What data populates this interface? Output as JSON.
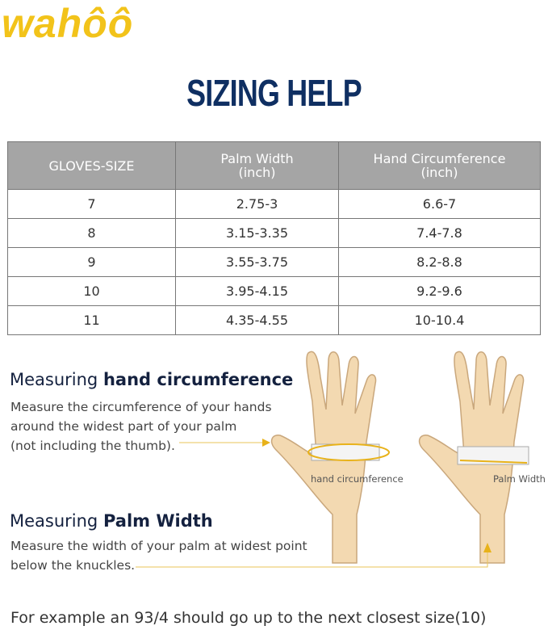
{
  "logo": "wahôô",
  "title": "SIZING HELP",
  "table": {
    "headers": [
      "GLOVES-SIZE",
      "Palm Width\n(inch)",
      "Hand Circumference\n(inch)"
    ],
    "header_lines": [
      [
        "GLOVES-SIZE"
      ],
      [
        "Palm Width",
        "(inch)"
      ],
      [
        "Hand Circumference",
        "(inch)"
      ]
    ],
    "rows": [
      [
        "7",
        "2.75-3",
        "6.6-7"
      ],
      [
        "8",
        "3.15-3.35",
        "7.4-7.8"
      ],
      [
        "9",
        "3.55-3.75",
        "8.2-8.8"
      ],
      [
        "10",
        "3.95-4.15",
        "9.2-9.6"
      ],
      [
        "11",
        "4.35-4.55",
        "10-10.4"
      ]
    ]
  },
  "circ": {
    "prefix": "Measuring ",
    "bold": "hand circumference",
    "lines": [
      "Measure the circumference of your hands",
      "around the widest part of your palm",
      "(not including the thumb)."
    ],
    "label": "hand circumference"
  },
  "palm": {
    "prefix": "Measuring ",
    "bold": "Palm Width",
    "lines": [
      "Measure the width of your palm at widest point",
      "below the knuckles."
    ],
    "label": "Palm Width"
  },
  "footer": "For example an 93/4 should go up to the next closest size(10)",
  "colors": {
    "brand": "#f2c31a",
    "title": "#0f2f62",
    "header": "#a5a5a5",
    "skin": "#f3d9b1"
  }
}
